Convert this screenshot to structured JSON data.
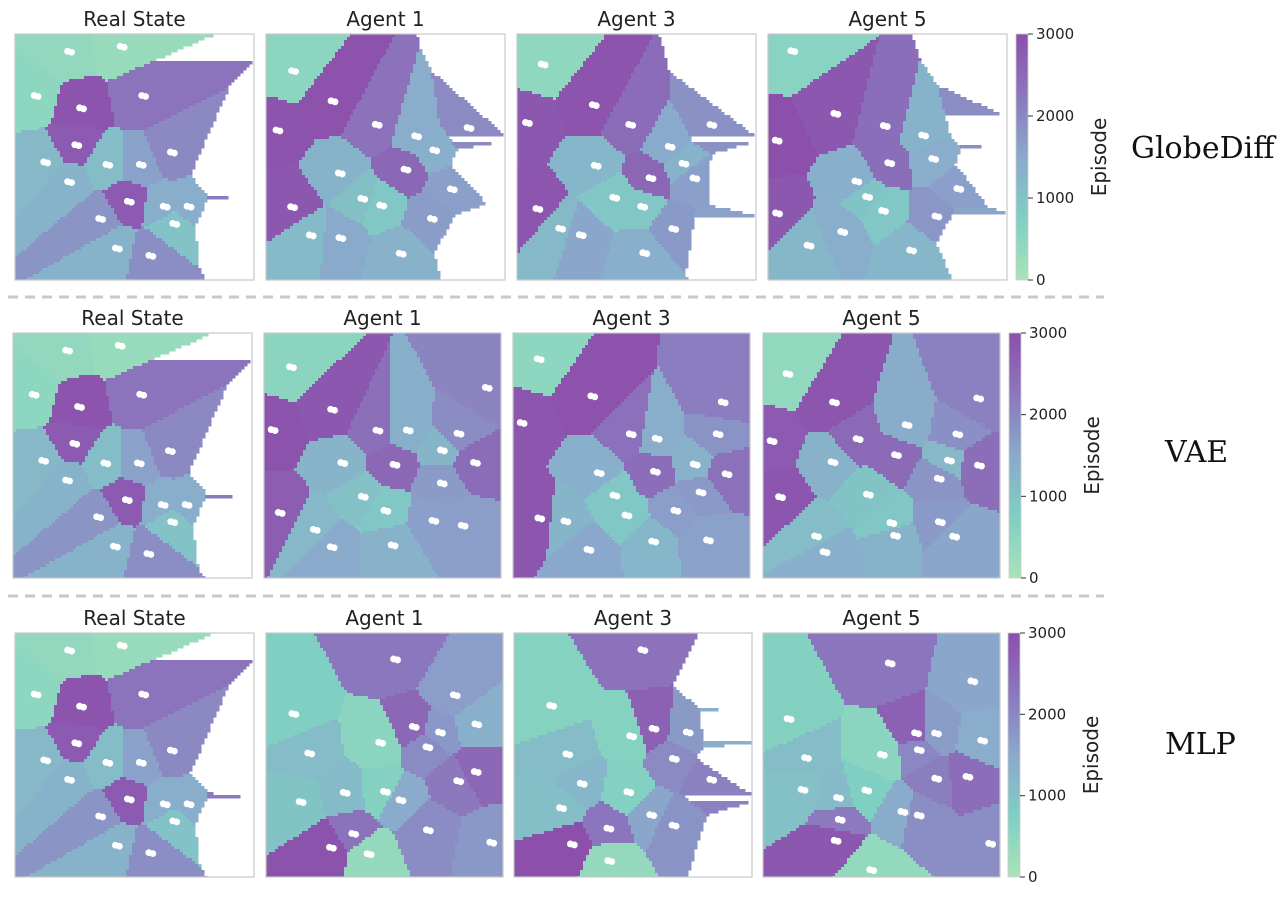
{
  "chart_data": {
    "type": "voronoi",
    "panel_titles": [
      "Real State",
      "Agent 1",
      "Agent 3",
      "Agent 5"
    ],
    "rows": [
      {
        "method": "GlobeDiff"
      },
      {
        "method": "VAE"
      },
      {
        "method": "MLP"
      }
    ],
    "colorbar": {
      "label": "Episode",
      "ticks": [
        "3000",
        "2000",
        "1000",
        "0"
      ],
      "range": [
        0,
        3000
      ],
      "colormap": [
        "#a9e3b8",
        "#7fcfc3",
        "#8aa9cc",
        "#8b77bd",
        "#8c4fab"
      ]
    },
    "separator": "dashed"
  }
}
